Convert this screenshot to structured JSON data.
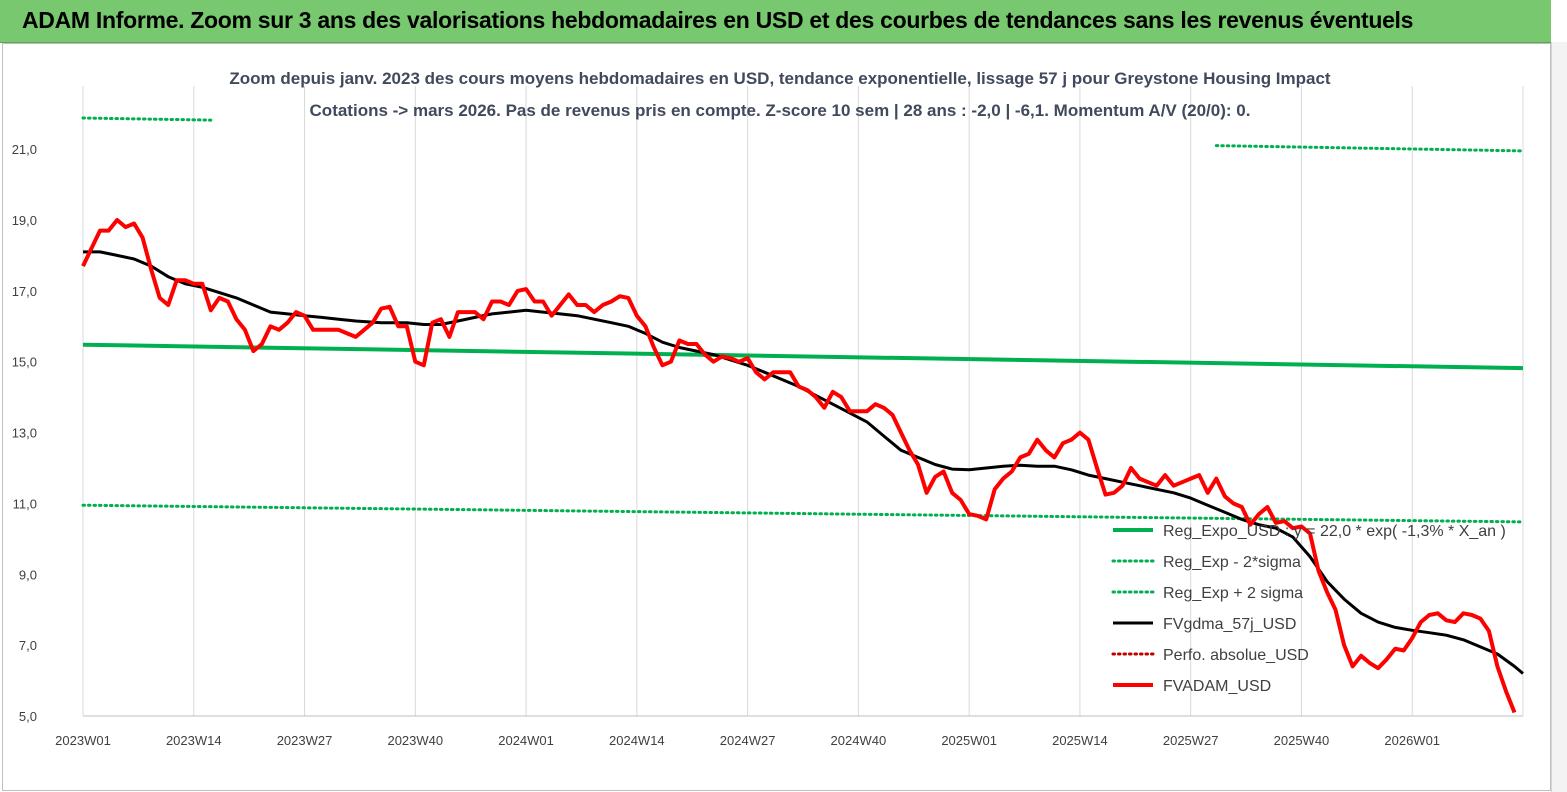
{
  "header": {
    "title": "ADAM Informe. Zoom sur 3 ans des valorisations hebdomadaires en USD et des courbes de tendances sans les revenus éventuels"
  },
  "chart_data": {
    "type": "line",
    "title": "Zoom depuis janv. 2023 des cours moyens hebdomadaires en USD, tendance exponentielle, lissage 57 j pour Greystone Housing Impact",
    "subtitle": "Cotations -> mars 2026. Pas de revenus pris en compte. Z-score 10 sem  | 28 ans : -2,0 | -6,1. Momentum A/V (20/0): 0.",
    "xlabel": "",
    "ylabel": "",
    "ylim": [
      5,
      22.5
    ],
    "yticks": [
      "5,0",
      "7,0",
      "9,0",
      "11,0",
      "13,0",
      "15,0",
      "17,0",
      "19,0",
      "21,0"
    ],
    "ytick_values": [
      5,
      7,
      9,
      11,
      13,
      15,
      17,
      19,
      21
    ],
    "x_range": [
      0,
      169
    ],
    "xticks": [
      {
        "label": "2023W01",
        "x": 0
      },
      {
        "label": "2023W14",
        "x": 13
      },
      {
        "label": "2023W27",
        "x": 26
      },
      {
        "label": "2023W40",
        "x": 39
      },
      {
        "label": "2024W01",
        "x": 52
      },
      {
        "label": "2024W14",
        "x": 65
      },
      {
        "label": "2024W27",
        "x": 78
      },
      {
        "label": "2024W40",
        "x": 91
      },
      {
        "label": "2025W01",
        "x": 104
      },
      {
        "label": "2025W14",
        "x": 117
      },
      {
        "label": "2025W27",
        "x": 130
      },
      {
        "label": "2025W40",
        "x": 143
      },
      {
        "label": "2026W01",
        "x": 156
      }
    ],
    "grid": "vertical",
    "legend_position": "bottom-right",
    "colors": {
      "reg_expo": "#00b050",
      "sigma_minus": "#00b050",
      "sigma_plus": "#00b050",
      "fvgdma": "#000000",
      "perfo": "#c00000",
      "fvadam": "#ff0000",
      "grid": "#d9d9d9",
      "axis": "#bfbfbf"
    },
    "series": [
      {
        "name": "Reg_Expo_USD : y = 22,0 * exp( -1,3% *  X_an )",
        "key": "reg_expo",
        "style": "solid-thick",
        "points": [
          [
            0,
            15.48
          ],
          [
            169,
            14.82
          ]
        ]
      },
      {
        "name": "Reg_Exp - 2*sigma",
        "key": "sigma_minus",
        "style": "dotted",
        "points": [
          [
            0,
            10.95
          ],
          [
            169,
            10.48
          ]
        ]
      },
      {
        "name": "Reg_Exp + 2 sigma",
        "key": "sigma_plus",
        "style": "dotted",
        "segments": [
          [
            [
              0,
              21.88
            ],
            [
              15,
              21.82
            ]
          ],
          [
            [
              133,
              21.1
            ],
            [
              169,
              20.95
            ]
          ]
        ]
      },
      {
        "name": "FVgdma_57j_USD",
        "key": "fvgdma",
        "style": "solid",
        "points": [
          [
            0,
            18.1
          ],
          [
            2,
            18.1
          ],
          [
            4,
            18.0
          ],
          [
            6,
            17.9
          ],
          [
            8,
            17.7
          ],
          [
            10,
            17.4
          ],
          [
            12,
            17.2
          ],
          [
            14,
            17.1
          ],
          [
            16,
            16.95
          ],
          [
            18,
            16.8
          ],
          [
            20,
            16.6
          ],
          [
            22,
            16.4
          ],
          [
            24,
            16.35
          ],
          [
            26,
            16.3
          ],
          [
            28,
            16.25
          ],
          [
            30,
            16.2
          ],
          [
            32,
            16.15
          ],
          [
            35,
            16.1
          ],
          [
            38,
            16.1
          ],
          [
            40,
            16.05
          ],
          [
            42,
            16.05
          ],
          [
            44,
            16.15
          ],
          [
            46,
            16.25
          ],
          [
            48,
            16.35
          ],
          [
            50,
            16.4
          ],
          [
            52,
            16.45
          ],
          [
            54,
            16.4
          ],
          [
            56,
            16.35
          ],
          [
            58,
            16.3
          ],
          [
            60,
            16.2
          ],
          [
            62,
            16.1
          ],
          [
            64,
            16.0
          ],
          [
            66,
            15.8
          ],
          [
            68,
            15.55
          ],
          [
            70,
            15.4
          ],
          [
            72,
            15.3
          ],
          [
            74,
            15.2
          ],
          [
            76,
            15.05
          ],
          [
            78,
            14.9
          ],
          [
            80,
            14.7
          ],
          [
            82,
            14.5
          ],
          [
            84,
            14.3
          ],
          [
            86,
            14.05
          ],
          [
            88,
            13.8
          ],
          [
            90,
            13.55
          ],
          [
            92,
            13.3
          ],
          [
            94,
            12.9
          ],
          [
            96,
            12.5
          ],
          [
            98,
            12.3
          ],
          [
            100,
            12.1
          ],
          [
            102,
            11.97
          ],
          [
            104,
            11.95
          ],
          [
            106,
            12.0
          ],
          [
            108,
            12.05
          ],
          [
            110,
            12.08
          ],
          [
            112,
            12.05
          ],
          [
            114,
            12.05
          ],
          [
            116,
            11.95
          ],
          [
            118,
            11.8
          ],
          [
            120,
            11.7
          ],
          [
            122,
            11.6
          ],
          [
            124,
            11.5
          ],
          [
            126,
            11.4
          ],
          [
            128,
            11.3
          ],
          [
            130,
            11.15
          ],
          [
            132,
            10.95
          ],
          [
            134,
            10.75
          ],
          [
            136,
            10.55
          ],
          [
            138,
            10.4
          ],
          [
            140,
            10.3
          ],
          [
            142,
            10.05
          ],
          [
            144,
            9.5
          ],
          [
            146,
            8.8
          ],
          [
            148,
            8.3
          ],
          [
            150,
            7.9
          ],
          [
            152,
            7.65
          ],
          [
            154,
            7.5
          ],
          [
            156,
            7.42
          ],
          [
            158,
            7.35
          ],
          [
            160,
            7.28
          ],
          [
            162,
            7.15
          ],
          [
            164,
            6.95
          ],
          [
            166,
            6.75
          ],
          [
            168,
            6.4
          ],
          [
            169,
            6.2
          ]
        ]
      },
      {
        "name": "Perfo. absolue_USD",
        "key": "perfo",
        "style": "dotted",
        "points": []
      },
      {
        "name": "FVADAM_USD",
        "key": "fvadam",
        "style": "solid-thick",
        "points": [
          [
            0,
            17.7
          ],
          [
            1,
            18.2
          ],
          [
            2,
            18.7
          ],
          [
            3,
            18.7
          ],
          [
            4,
            19.0
          ],
          [
            5,
            18.8
          ],
          [
            6,
            18.9
          ],
          [
            7,
            18.5
          ],
          [
            8,
            17.6
          ],
          [
            9,
            16.8
          ],
          [
            10,
            16.6
          ],
          [
            11,
            17.3
          ],
          [
            12,
            17.3
          ],
          [
            13,
            17.2
          ],
          [
            14,
            17.2
          ],
          [
            15,
            16.45
          ],
          [
            16,
            16.8
          ],
          [
            17,
            16.7
          ],
          [
            18,
            16.2
          ],
          [
            19,
            15.9
          ],
          [
            20,
            15.3
          ],
          [
            21,
            15.5
          ],
          [
            22,
            16.0
          ],
          [
            23,
            15.9
          ],
          [
            24,
            16.1
          ],
          [
            25,
            16.4
          ],
          [
            26,
            16.3
          ],
          [
            27,
            15.9
          ],
          [
            28,
            15.9
          ],
          [
            29,
            15.9
          ],
          [
            30,
            15.9
          ],
          [
            31,
            15.8
          ],
          [
            32,
            15.7
          ],
          [
            33,
            15.9
          ],
          [
            34,
            16.1
          ],
          [
            35,
            16.5
          ],
          [
            36,
            16.55
          ],
          [
            37,
            16.0
          ],
          [
            38,
            16.0
          ],
          [
            39,
            15.0
          ],
          [
            40,
            14.9
          ],
          [
            41,
            16.1
          ],
          [
            42,
            16.2
          ],
          [
            43,
            15.7
          ],
          [
            44,
            16.4
          ],
          [
            45,
            16.4
          ],
          [
            46,
            16.4
          ],
          [
            47,
            16.2
          ],
          [
            48,
            16.7
          ],
          [
            49,
            16.7
          ],
          [
            50,
            16.6
          ],
          [
            51,
            17.0
          ],
          [
            52,
            17.05
          ],
          [
            53,
            16.7
          ],
          [
            54,
            16.7
          ],
          [
            55,
            16.3
          ],
          [
            56,
            16.6
          ],
          [
            57,
            16.9
          ],
          [
            58,
            16.6
          ],
          [
            59,
            16.6
          ],
          [
            60,
            16.4
          ],
          [
            61,
            16.6
          ],
          [
            62,
            16.7
          ],
          [
            63,
            16.85
          ],
          [
            64,
            16.8
          ],
          [
            65,
            16.3
          ],
          [
            66,
            16.0
          ],
          [
            67,
            15.4
          ],
          [
            68,
            14.9
          ],
          [
            69,
            15.0
          ],
          [
            70,
            15.6
          ],
          [
            71,
            15.5
          ],
          [
            72,
            15.5
          ],
          [
            73,
            15.2
          ],
          [
            74,
            15.0
          ],
          [
            75,
            15.15
          ],
          [
            76,
            15.1
          ],
          [
            77,
            15.0
          ],
          [
            78,
            15.1
          ],
          [
            79,
            14.7
          ],
          [
            80,
            14.5
          ],
          [
            81,
            14.7
          ],
          [
            82,
            14.7
          ],
          [
            83,
            14.7
          ],
          [
            84,
            14.3
          ],
          [
            85,
            14.2
          ],
          [
            86,
            14.0
          ],
          [
            87,
            13.7
          ],
          [
            88,
            14.15
          ],
          [
            89,
            14.0
          ],
          [
            90,
            13.6
          ],
          [
            91,
            13.6
          ],
          [
            92,
            13.6
          ],
          [
            93,
            13.8
          ],
          [
            94,
            13.7
          ],
          [
            95,
            13.5
          ],
          [
            96,
            13.0
          ],
          [
            97,
            12.5
          ],
          [
            98,
            12.1
          ],
          [
            99,
            11.3
          ],
          [
            100,
            11.75
          ],
          [
            101,
            11.9
          ],
          [
            102,
            11.3
          ],
          [
            103,
            11.1
          ],
          [
            104,
            10.7
          ],
          [
            105,
            10.65
          ],
          [
            106,
            10.55
          ],
          [
            107,
            11.4
          ],
          [
            108,
            11.7
          ],
          [
            109,
            11.9
          ],
          [
            110,
            12.3
          ],
          [
            111,
            12.4
          ],
          [
            112,
            12.8
          ],
          [
            113,
            12.5
          ],
          [
            114,
            12.3
          ],
          [
            115,
            12.7
          ],
          [
            116,
            12.8
          ],
          [
            117,
            13.0
          ],
          [
            118,
            12.8
          ],
          [
            119,
            12.0
          ],
          [
            120,
            11.25
          ],
          [
            121,
            11.3
          ],
          [
            122,
            11.5
          ],
          [
            123,
            12.0
          ],
          [
            124,
            11.7
          ],
          [
            125,
            11.6
          ],
          [
            126,
            11.5
          ],
          [
            127,
            11.8
          ],
          [
            128,
            11.5
          ],
          [
            129,
            11.6
          ],
          [
            130,
            11.7
          ],
          [
            131,
            11.8
          ],
          [
            132,
            11.3
          ],
          [
            133,
            11.7
          ],
          [
            134,
            11.2
          ],
          [
            135,
            11.0
          ],
          [
            136,
            10.9
          ],
          [
            137,
            10.4
          ],
          [
            138,
            10.7
          ],
          [
            139,
            10.9
          ],
          [
            140,
            10.45
          ],
          [
            141,
            10.5
          ],
          [
            142,
            10.3
          ],
          [
            143,
            10.35
          ],
          [
            144,
            10.15
          ],
          [
            145,
            9.1
          ],
          [
            146,
            8.5
          ],
          [
            147,
            8.0
          ],
          [
            148,
            7.0
          ],
          [
            149,
            6.4
          ],
          [
            150,
            6.7
          ],
          [
            151,
            6.5
          ],
          [
            152,
            6.35
          ],
          [
            153,
            6.6
          ],
          [
            154,
            6.9
          ],
          [
            155,
            6.85
          ],
          [
            156,
            7.2
          ],
          [
            157,
            7.65
          ],
          [
            158,
            7.85
          ],
          [
            159,
            7.9
          ],
          [
            160,
            7.7
          ],
          [
            161,
            7.65
          ],
          [
            162,
            7.9
          ],
          [
            163,
            7.85
          ],
          [
            164,
            7.75
          ],
          [
            165,
            7.4
          ],
          [
            166,
            6.4
          ],
          [
            167,
            5.7
          ],
          [
            168,
            5.1
          ]
        ]
      }
    ]
  }
}
